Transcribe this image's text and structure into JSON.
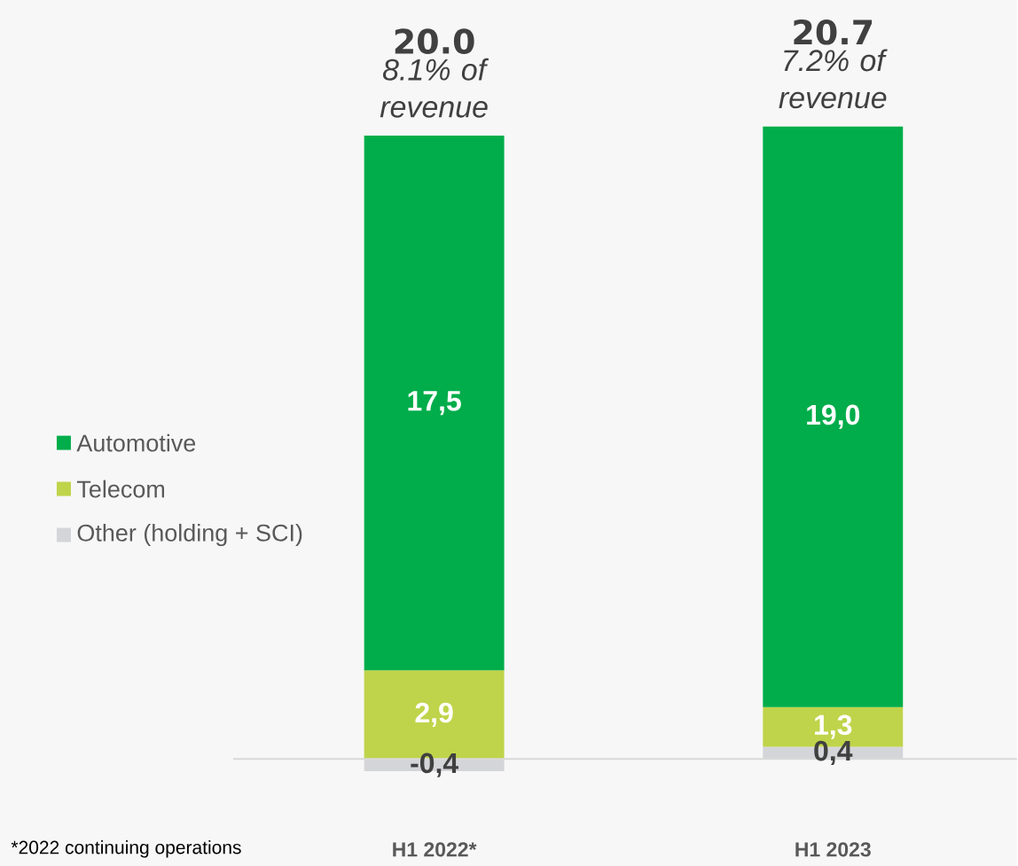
{
  "chart_data": {
    "type": "bar",
    "stacked": true,
    "categories": [
      "H1 2022*",
      "H1 2023"
    ],
    "series": [
      {
        "name": "Other (holding + SCI)",
        "color": "#d4d5d9",
        "values": [
          -0.4,
          0.4
        ],
        "value_labels": [
          "-0,4",
          "0,4"
        ]
      },
      {
        "name": "Telecom",
        "color": "#bfd44a",
        "values": [
          2.9,
          1.3
        ],
        "value_labels": [
          "2,9",
          "1,3"
        ]
      },
      {
        "name": "Automotive",
        "color": "#00ad4a",
        "values": [
          17.5,
          19.0
        ],
        "value_labels": [
          "17,5",
          "19,0"
        ]
      }
    ],
    "totals": [
      "20.0",
      "20.7"
    ],
    "annotations": [
      {
        "text": "8.1% of revenue",
        "x": "H1 2022*",
        "y": 20.4
      },
      {
        "text": "7.2% of revenue",
        "x": "H1 2023",
        "y": 20.7
      },
      "*2022 continuing operations"
    ],
    "legend": "left"
  }
}
